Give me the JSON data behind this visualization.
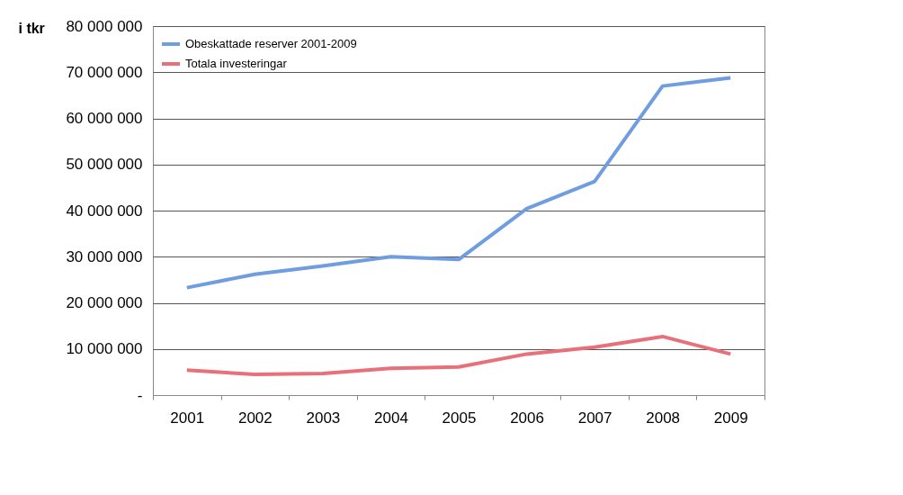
{
  "chart_data": {
    "type": "line",
    "ylabel": "i tkr",
    "categories": [
      "2001",
      "2002",
      "2003",
      "2004",
      "2005",
      "2006",
      "2007",
      "2008",
      "2009"
    ],
    "series": [
      {
        "name": "Obeskattade reserver 2001-2009",
        "color": "#6f9de0",
        "values": [
          23300000,
          26200000,
          28000000,
          30000000,
          29400000,
          40400000,
          46300000,
          67000000,
          68800000
        ]
      },
      {
        "name": "Totala investeringar",
        "color": "#e8707a",
        "values": [
          5400000,
          4500000,
          4700000,
          5800000,
          6100000,
          8900000,
          10400000,
          12700000,
          8900000
        ]
      }
    ],
    "ylim": [
      0,
      80000000
    ],
    "yticks": [
      {
        "value": 0,
        "label": "-"
      },
      {
        "value": 10000000,
        "label": "10 000 000"
      },
      {
        "value": 20000000,
        "label": "20 000 000"
      },
      {
        "value": 30000000,
        "label": "30 000 000"
      },
      {
        "value": 40000000,
        "label": "40 000 000"
      },
      {
        "value": 50000000,
        "label": "50 000 000"
      },
      {
        "value": 60000000,
        "label": "60 000 000"
      },
      {
        "value": 70000000,
        "label": "70 000 000"
      },
      {
        "value": 80000000,
        "label": "80 000 000"
      }
    ],
    "grid": "y",
    "legend": "top left",
    "marker": "none",
    "line_style": "solid"
  }
}
